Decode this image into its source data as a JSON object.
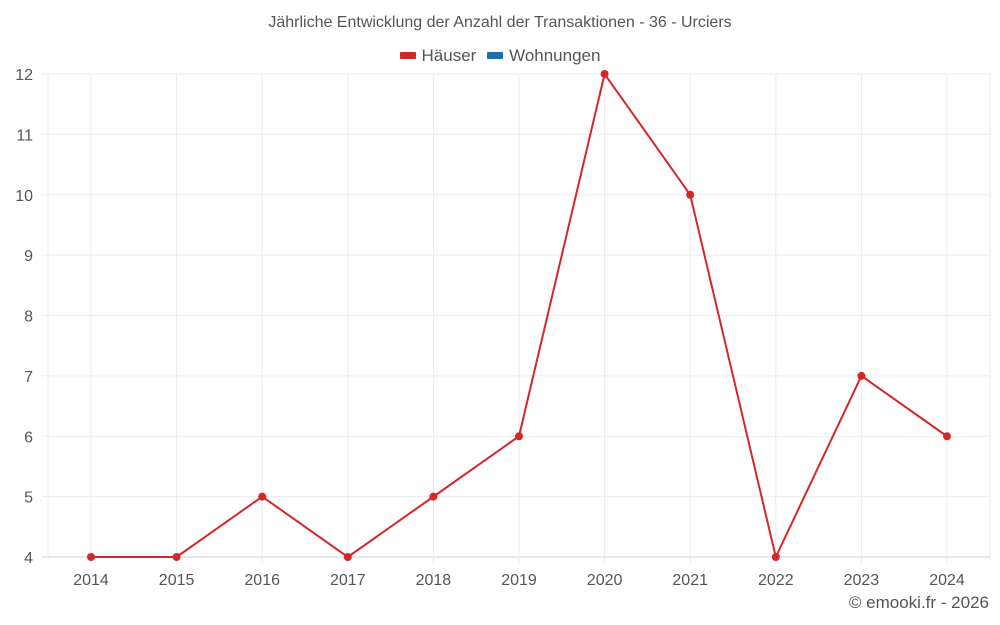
{
  "chart_data": {
    "type": "line",
    "title": "Jährliche Entwicklung der Anzahl der Transaktionen - 36 - Urciers",
    "xlabel": "",
    "ylabel": "",
    "categories": [
      "2014",
      "2015",
      "2016",
      "2017",
      "2018",
      "2019",
      "2020",
      "2021",
      "2022",
      "2023",
      "2024"
    ],
    "series": [
      {
        "name": "Häuser",
        "color": "#d62728",
        "values": [
          4,
          4,
          5,
          4,
          5,
          6,
          12,
          10,
          4,
          7,
          6
        ]
      },
      {
        "name": "Wohnungen",
        "color": "#1f6fa8",
        "values": []
      }
    ],
    "ylim": [
      4,
      12
    ],
    "yticks": [
      4,
      5,
      6,
      7,
      8,
      9,
      10,
      11,
      12
    ],
    "grid": true,
    "legend_position": "top"
  },
  "title": "Jährliche Entwicklung der Anzahl der Transaktionen - 36 - Urciers",
  "legend": [
    {
      "label": "Häuser",
      "color": "#d62728"
    },
    {
      "label": "Wohnungen",
      "color": "#1f6fa8"
    }
  ],
  "credit": "© emooki.fr - 2026"
}
